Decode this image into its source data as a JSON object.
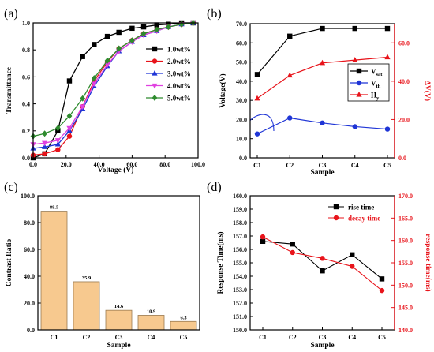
{
  "chart_data": [
    {
      "panel_label": "(a)",
      "type": "line",
      "xlabel": "Voltage (V)",
      "ylabel": "Transmittance",
      "xlim": [
        0,
        100
      ],
      "ylim": [
        0,
        1.0
      ],
      "xticks": [
        "0.0",
        "20.0",
        "40.0",
        "60.0",
        "80.0",
        "100.0"
      ],
      "yticks": [
        "0.0",
        "0.2",
        "0.4",
        "0.6",
        "0.8",
        "1.0"
      ],
      "legend_position": "right",
      "series": [
        {
          "name": "1.0wt%",
          "color": "#000000",
          "marker": "square",
          "x": [
            0,
            7,
            15,
            22,
            30,
            37,
            45,
            52,
            60,
            67,
            75,
            82,
            90,
            97
          ],
          "y": [
            0.0,
            0.03,
            0.2,
            0.57,
            0.75,
            0.84,
            0.9,
            0.93,
            0.96,
            0.97,
            0.985,
            0.99,
            1.0,
            1.0
          ]
        },
        {
          "name": "2.0wt%",
          "color": "#e8141b",
          "marker": "circle",
          "x": [
            0,
            7,
            15,
            22,
            30,
            37,
            45,
            52,
            60,
            67,
            75,
            82,
            90,
            97
          ],
          "y": [
            0.02,
            0.03,
            0.06,
            0.16,
            0.38,
            0.57,
            0.71,
            0.81,
            0.87,
            0.92,
            0.95,
            0.97,
            0.99,
            1.0
          ]
        },
        {
          "name": "3.0wt%",
          "color": "#1f35d6",
          "marker": "triangle-up",
          "x": [
            0,
            7,
            15,
            22,
            30,
            37,
            45,
            52,
            60,
            67,
            75,
            82,
            90,
            97
          ],
          "y": [
            0.07,
            0.08,
            0.1,
            0.2,
            0.36,
            0.53,
            0.68,
            0.79,
            0.86,
            0.91,
            0.94,
            0.97,
            0.99,
            1.0
          ]
        },
        {
          "name": "4.0wt%",
          "color": "#e040e0",
          "marker": "triangle-down",
          "x": [
            0,
            7,
            15,
            22,
            30,
            37,
            45,
            52,
            60,
            67,
            75,
            82,
            90,
            97
          ],
          "y": [
            0.1,
            0.11,
            0.13,
            0.22,
            0.38,
            0.55,
            0.69,
            0.79,
            0.86,
            0.91,
            0.94,
            0.97,
            0.99,
            1.0
          ]
        },
        {
          "name": "5.0wt%",
          "color": "#2e8b2e",
          "marker": "diamond",
          "x": [
            0,
            7,
            15,
            22,
            30,
            37,
            45,
            52,
            60,
            67,
            75,
            82,
            90,
            97
          ],
          "y": [
            0.16,
            0.18,
            0.22,
            0.31,
            0.44,
            0.59,
            0.72,
            0.81,
            0.87,
            0.92,
            0.95,
            0.97,
            0.99,
            1.0
          ]
        }
      ]
    },
    {
      "panel_label": "(b)",
      "type": "line",
      "xlabel": "Sample",
      "ylabel": "Voltage(V)",
      "ylabel_right": "ΔV(V)",
      "categories": [
        "C1",
        "C2",
        "C3",
        "C4",
        "C5"
      ],
      "ylim": [
        0,
        70
      ],
      "ylim_right": [
        0,
        70
      ],
      "yticks": [
        "0.0",
        "10.0",
        "20.0",
        "30.0",
        "40.0",
        "50.0",
        "60.0",
        "70.0"
      ],
      "yticks_right": [
        "0.0",
        "20.0",
        "40.0",
        "60.0"
      ],
      "legend_position": "right",
      "legend_labels": [
        {
          "main": "V",
          "sub": "sat"
        },
        {
          "main": "V",
          "sub": "th"
        },
        {
          "main": "H",
          "sub": "y"
        }
      ],
      "series": [
        {
          "color": "#000000",
          "marker": "square",
          "axis": "left",
          "values": [
            43.5,
            63.5,
            67.5,
            67.5,
            67.5
          ]
        },
        {
          "color": "#1f35d6",
          "marker": "circle",
          "axis": "left",
          "values": [
            12.5,
            20.8,
            18.2,
            16.3,
            15.0
          ]
        },
        {
          "color": "#e8141b",
          "marker": "triangle-up",
          "axis": "right",
          "values": [
            31,
            43,
            49.5,
            51,
            52.5
          ]
        }
      ]
    },
    {
      "panel_label": "(c)",
      "type": "bar",
      "xlabel": "Sample",
      "ylabel": "Contrast Ratio",
      "categories": [
        "C1",
        "C2",
        "C3",
        "C4",
        "C5"
      ],
      "values": [
        88.5,
        35.9,
        14.6,
        10.9,
        6.3
      ],
      "data_labels": [
        "88.5",
        "35.9",
        "14.6",
        "10.9",
        "6.3"
      ],
      "ylim": [
        0,
        100
      ],
      "yticks": [
        "0.0",
        "20.0",
        "40.0",
        "60.0",
        "80.0",
        "100.0"
      ],
      "bar_color": "#f7c98f",
      "bar_edge": "#9a7a50"
    },
    {
      "panel_label": "(d)",
      "type": "line",
      "xlabel": "Sample",
      "ylabel": "Response Time(ms)",
      "ylabel_right": "response time(ms)",
      "categories": [
        "C1",
        "C2",
        "C3",
        "C4",
        "C5"
      ],
      "ylim": [
        150,
        160
      ],
      "ylim_right": [
        140,
        170
      ],
      "yticks": [
        "150.0",
        "151.0",
        "152.0",
        "153.0",
        "154.0",
        "155.0",
        "156.0",
        "157.0",
        "158.0",
        "159.0",
        "160.0"
      ],
      "yticks_right": [
        "140.0",
        "145.0",
        "150.0",
        "155.0",
        "160.0",
        "165.0",
        "170.0"
      ],
      "legend_position": "top-right",
      "series": [
        {
          "name": "rise time",
          "color": "#000000",
          "marker": "square",
          "axis": "left",
          "values": [
            156.6,
            156.4,
            154.4,
            155.6,
            153.8
          ]
        },
        {
          "name": "decay time",
          "color": "#e8141b",
          "marker": "circle",
          "axis": "right",
          "values": [
            160.8,
            157.3,
            156.0,
            154.2,
            148.8
          ]
        }
      ]
    }
  ]
}
